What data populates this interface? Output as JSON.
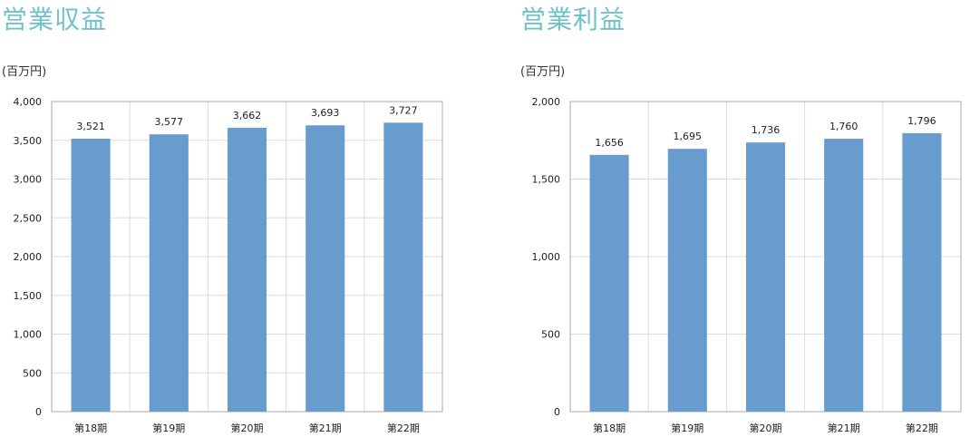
{
  "chart_data": [
    {
      "type": "bar",
      "title": "営業収益",
      "ylabel": "(百万円)",
      "categories": [
        "第18期",
        "第19期",
        "第20期",
        "第21期",
        "第22期"
      ],
      "values": [
        3521,
        3577,
        3662,
        3693,
        3727
      ],
      "value_labels": [
        "3,521",
        "3,577",
        "3,662",
        "3,693",
        "3,727"
      ],
      "ylim": [
        0,
        4000
      ],
      "yticks": [
        0,
        500,
        1000,
        1500,
        2000,
        2500,
        3000,
        3500,
        4000
      ],
      "ytick_labels": [
        "0",
        "500",
        "1,000",
        "1,500",
        "2,000",
        "2,500",
        "3,000",
        "3,500",
        "4,000"
      ],
      "grid": true,
      "color": "#689ccf"
    },
    {
      "type": "bar",
      "title": "営業利益",
      "ylabel": "(百万円)",
      "categories": [
        "第18期",
        "第19期",
        "第20期",
        "第21期",
        "第22期"
      ],
      "values": [
        1656,
        1695,
        1736,
        1760,
        1796
      ],
      "value_labels": [
        "1,656",
        "1,695",
        "1,736",
        "1,760",
        "1,796"
      ],
      "ylim": [
        0,
        2000
      ],
      "yticks": [
        0,
        500,
        1000,
        1500,
        2000
      ],
      "ytick_labels": [
        "0",
        "500",
        "1,000",
        "1,500",
        "2,000"
      ],
      "grid": true,
      "color": "#689ccf"
    }
  ]
}
